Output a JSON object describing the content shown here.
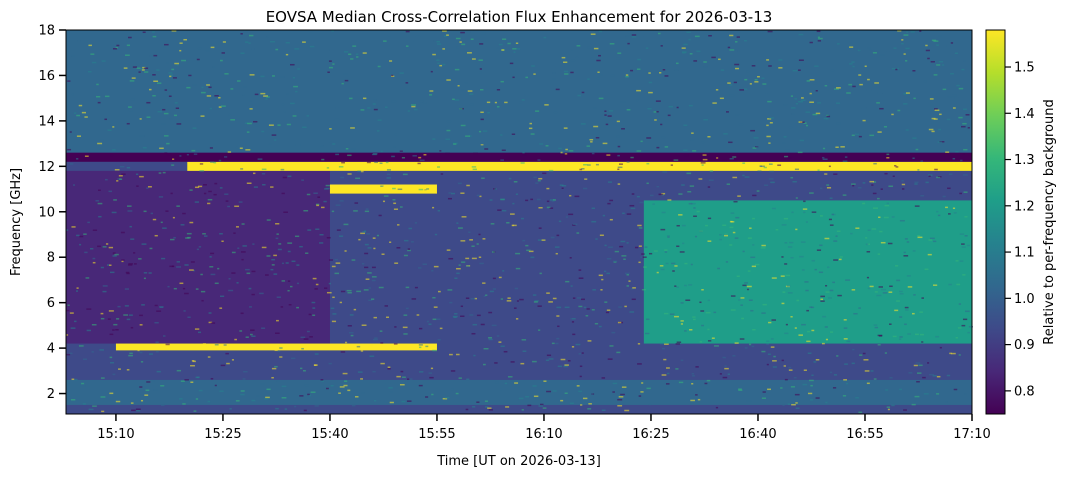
{
  "chart_data": {
    "type": "heatmap",
    "title": "EOVSA Median Cross-Correlation Flux Enhancement for 2026-03-13",
    "xlabel": "Time [UT on 2026-03-13]",
    "ylabel": "Frequency [GHz]",
    "colorbar_label": "Relative to per-frequency background",
    "colormap": "viridis",
    "colors": [
      "#440154",
      "#482878",
      "#3e4a89",
      "#31688e",
      "#26828e",
      "#1f9e89",
      "#35b779",
      "#6ece58",
      "#b5de2b",
      "#fde725"
    ],
    "x_range": [
      "15:03",
      "17:10"
    ],
    "x_ticks": [
      "15:10",
      "15:25",
      "15:40",
      "15:55",
      "16:10",
      "16:25",
      "16:40",
      "16:55",
      "17:10"
    ],
    "y_range": [
      1.1,
      18
    ],
    "y_ticks": [
      2,
      4,
      6,
      8,
      10,
      12,
      14,
      16,
      18
    ],
    "color_range": [
      0.75,
      1.58
    ],
    "colorbar_ticks": [
      0.8,
      0.9,
      1.0,
      1.1,
      1.2,
      1.3,
      1.4,
      1.5
    ],
    "features": [
      {
        "t_start": "15:03",
        "t_end": "17:10",
        "f_low": 12.2,
        "f_high": 12.6,
        "value": 0.78
      },
      {
        "t_start": "15:20",
        "t_end": "17:10",
        "f_low": 11.8,
        "f_high": 12.2,
        "value": 1.55
      },
      {
        "t_start": "15:40",
        "t_end": "15:55",
        "f_low": 10.8,
        "f_high": 11.2,
        "value": 1.55
      },
      {
        "t_start": "15:10",
        "t_end": "15:55",
        "f_low": 3.9,
        "f_high": 4.2,
        "value": 1.55
      },
      {
        "t_start": "15:03",
        "t_end": "17:10",
        "f_low": 1.5,
        "f_high": 2.6,
        "value": 1.05
      },
      {
        "t_start": "15:03",
        "t_end": "15:40",
        "f_low": 4.2,
        "f_high": 11.8,
        "value": 0.85
      },
      {
        "t_start": "16:24",
        "t_end": "17:10",
        "f_low": 4.2,
        "f_high": 10.5,
        "value": 1.25
      },
      {
        "t_start": "15:03",
        "t_end": "17:10",
        "f_low": 12.6,
        "f_high": 18,
        "value": 1.0
      }
    ]
  }
}
